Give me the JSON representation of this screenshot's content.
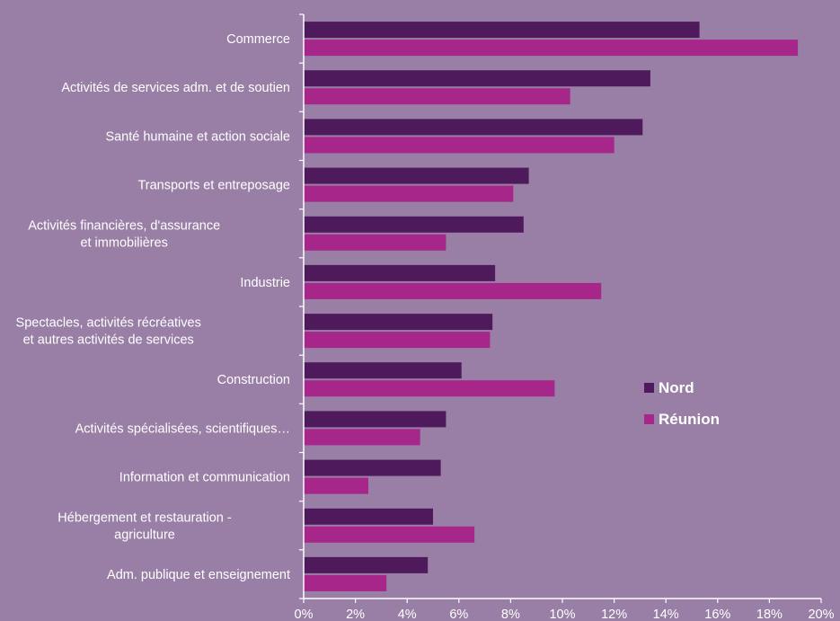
{
  "colors": {
    "background": "#997ea6",
    "nord": "#4e1a5c",
    "reunion": "#a6268a",
    "axis": "#ffffff",
    "text": "#ffffff"
  },
  "chart_data": {
    "type": "bar",
    "orientation": "horizontal",
    "categories": [
      [
        "Commerce"
      ],
      [
        "Activités de services adm. et de soutien"
      ],
      [
        "Santé humaine et action sociale"
      ],
      [
        "Transports et entreposage"
      ],
      [
        "Activités financières, d'assurance",
        "et immobilières"
      ],
      [
        "Industrie"
      ],
      [
        "Spectacles, activités récréatives",
        "et autres activités de services"
      ],
      [
        "Construction"
      ],
      [
        "Activités spécialisées, scientifiques…"
      ],
      [
        "Information et communication"
      ],
      [
        "Hébergement et restauration -",
        "agriculture"
      ],
      [
        "Adm. publique et enseignement"
      ]
    ],
    "series": [
      {
        "name": "Nord",
        "values": [
          15.3,
          13.4,
          13.1,
          8.7,
          8.5,
          7.4,
          7.3,
          6.1,
          5.5,
          5.3,
          5.0,
          4.8
        ]
      },
      {
        "name": "Réunion",
        "values": [
          19.1,
          10.3,
          12.0,
          8.1,
          5.5,
          11.5,
          7.2,
          9.7,
          4.5,
          2.5,
          6.6,
          3.2
        ]
      }
    ],
    "x_ticks": [
      "0%",
      "2%",
      "4%",
      "6%",
      "8%",
      "10%",
      "12%",
      "14%",
      "16%",
      "18%",
      "20%"
    ],
    "xlim": [
      0,
      20
    ],
    "legend_position": "right-center",
    "grid": false
  }
}
